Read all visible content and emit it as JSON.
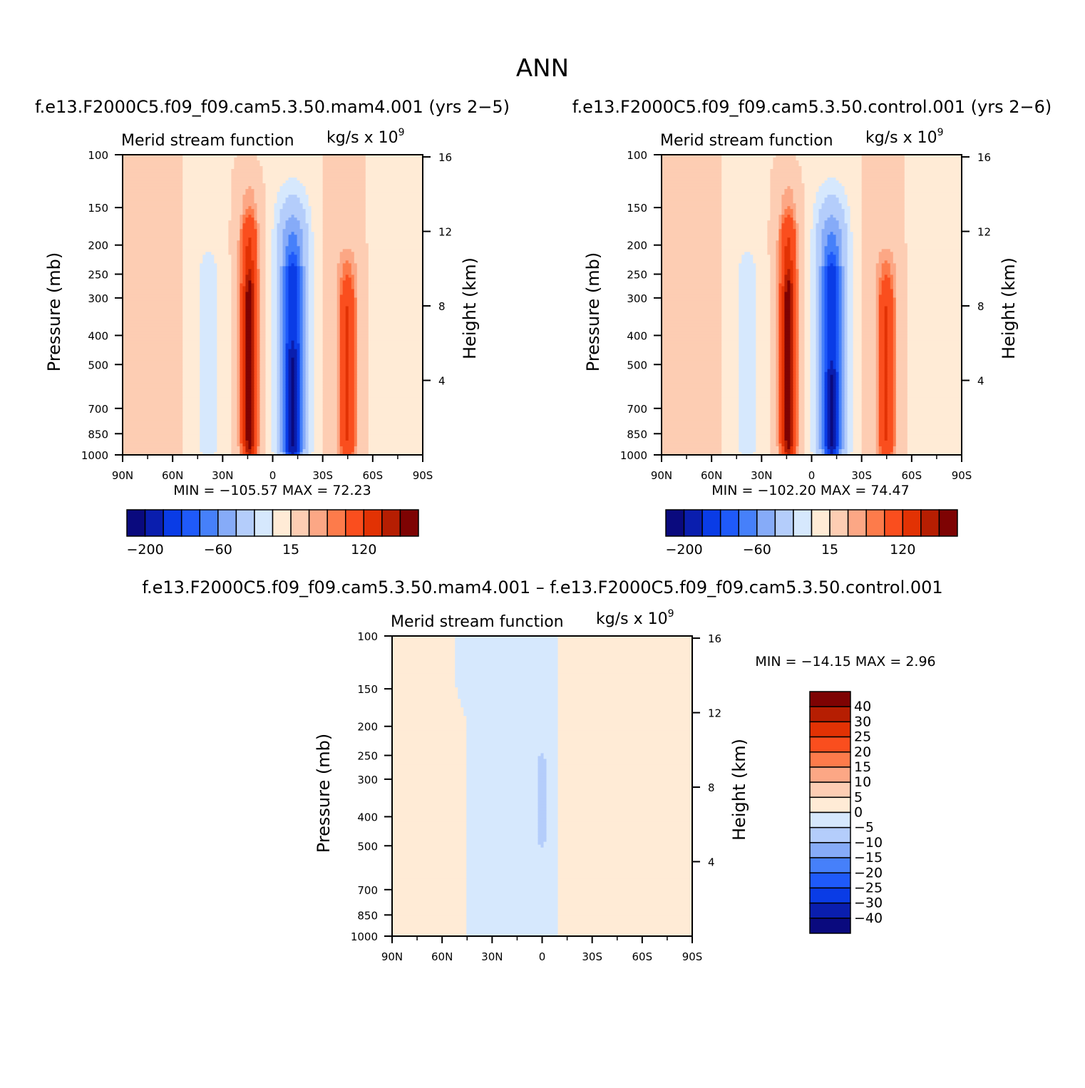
{
  "figure": {
    "title": "ANN",
    "bottom_title": "f.e13.F2000C5.f09_f09.cam5.3.50.mam4.001 – f.e13.F2000C5.f09_f09.cam5.3.50.control.001"
  },
  "chart_data": [
    {
      "type": "heatmap",
      "id": "p1",
      "title": "f.e13.F2000C5.f09_f09.cam5.3.50.mam4.001  (yrs 2−5)",
      "left_label": "Merid stream function",
      "units": "kg/s x 10",
      "units_exp": "9",
      "xlabel": "",
      "ylabel": "Pressure (mb)",
      "ylabel2": "Height (km)",
      "x_tick_labels": [
        "90N",
        "60N",
        "30N",
        "0",
        "30S",
        "60S",
        "90S"
      ],
      "x_tick_values": [
        90,
        60,
        30,
        0,
        -30,
        -60,
        -90
      ],
      "y_tick_labels": [
        "100",
        "150",
        "200",
        "250",
        "300",
        "400",
        "500",
        "700",
        "850",
        "1000"
      ],
      "y_tick_values": [
        100,
        150,
        200,
        250,
        300,
        400,
        500,
        700,
        850,
        1000
      ],
      "y2_tick_labels": [
        "16",
        "12",
        "8",
        "4"
      ],
      "y2_tick_values": [
        16,
        12,
        8,
        4
      ],
      "min": -105.57,
      "max": 72.23,
      "stats": "MIN = −105.57   MAX =   72.23",
      "features": [
        {
          "lat": 69,
          "p_top": 100,
          "p_bot": 1000,
          "value": 3,
          "width": 12
        },
        {
          "lat": 40,
          "p_top": 100,
          "p_bot": 1000,
          "value": -6,
          "width": 10
        },
        {
          "lat": 38,
          "p_top": 260,
          "p_bot": 880,
          "value": -12,
          "width": 6
        },
        {
          "lat": 14,
          "p_top": 140,
          "p_bot": 1000,
          "value": 12,
          "width": 7
        },
        {
          "lat": 14,
          "p_top": 200,
          "p_bot": 900,
          "value": 30,
          "width": 5
        },
        {
          "lat": 14,
          "p_top": 300,
          "p_bot": 870,
          "value": 60,
          "width": 2.5
        },
        {
          "lat": -12,
          "p_top": 100,
          "p_bot": 1000,
          "value": -6,
          "width": 14
        },
        {
          "lat": -12,
          "p_top": 150,
          "p_bot": 950,
          "value": -15,
          "width": 10
        },
        {
          "lat": -12,
          "p_top": 190,
          "p_bot": 930,
          "value": -40,
          "width": 8
        },
        {
          "lat": -12,
          "p_top": 260,
          "p_bot": 900,
          "value": -60,
          "width": 5
        },
        {
          "lat": -12,
          "p_top": 520,
          "p_bot": 880,
          "value": -100,
          "width": 3
        },
        {
          "lat": -42,
          "p_top": 100,
          "p_bot": 1000,
          "value": 4,
          "width": 12
        },
        {
          "lat": -45,
          "p_top": 240,
          "p_bot": 900,
          "value": 12,
          "width": 7
        },
        {
          "lat": -45,
          "p_top": 330,
          "p_bot": 870,
          "value": 25,
          "width": 4
        },
        {
          "lat": -72,
          "p_top": 100,
          "p_bot": 1000,
          "value": -4,
          "width": 14
        }
      ],
      "colorbar": {
        "labels": [
          "−200",
          "−60",
          "15",
          "120"
        ]
      }
    },
    {
      "type": "heatmap",
      "id": "p2",
      "title": "f.e13.F2000C5.f09_f09.cam5.3.50.control.001  (yrs 2−6)",
      "left_label": "Merid stream function",
      "units": "kg/s x 10",
      "units_exp": "9",
      "xlabel": "",
      "ylabel": "Pressure (mb)",
      "ylabel2": "Height (km)",
      "x_tick_labels": [
        "90N",
        "60N",
        "30N",
        "0",
        "30S",
        "60S",
        "90S"
      ],
      "x_tick_values": [
        90,
        60,
        30,
        0,
        -30,
        -60,
        -90
      ],
      "y_tick_labels": [
        "100",
        "150",
        "200",
        "250",
        "300",
        "400",
        "500",
        "700",
        "850",
        "1000"
      ],
      "y_tick_values": [
        100,
        150,
        200,
        250,
        300,
        400,
        500,
        700,
        850,
        1000
      ],
      "y2_tick_labels": [
        "16",
        "12",
        "8",
        "4"
      ],
      "y2_tick_values": [
        16,
        12,
        8,
        4
      ],
      "min": -102.2,
      "max": 74.47,
      "stats": "MIN = −102.20   MAX =   74.47",
      "features": [
        {
          "lat": 69,
          "p_top": 100,
          "p_bot": 1000,
          "value": 3,
          "width": 12
        },
        {
          "lat": 40,
          "p_top": 100,
          "p_bot": 1000,
          "value": -6,
          "width": 10
        },
        {
          "lat": 38,
          "p_top": 260,
          "p_bot": 880,
          "value": -12,
          "width": 6
        },
        {
          "lat": 14,
          "p_top": 140,
          "p_bot": 1000,
          "value": 12,
          "width": 7
        },
        {
          "lat": 14,
          "p_top": 200,
          "p_bot": 900,
          "value": 30,
          "width": 5
        },
        {
          "lat": 14,
          "p_top": 300,
          "p_bot": 870,
          "value": 60,
          "width": 2.5
        },
        {
          "lat": -12,
          "p_top": 100,
          "p_bot": 1000,
          "value": -6,
          "width": 14
        },
        {
          "lat": -12,
          "p_top": 150,
          "p_bot": 950,
          "value": -15,
          "width": 10
        },
        {
          "lat": -12,
          "p_top": 190,
          "p_bot": 930,
          "value": -40,
          "width": 8
        },
        {
          "lat": -12,
          "p_top": 260,
          "p_bot": 900,
          "value": -60,
          "width": 5
        },
        {
          "lat": -12,
          "p_top": 600,
          "p_bot": 880,
          "value": -100,
          "width": 2.5
        },
        {
          "lat": -42,
          "p_top": 100,
          "p_bot": 1000,
          "value": 4,
          "width": 12
        },
        {
          "lat": -45,
          "p_top": 240,
          "p_bot": 900,
          "value": 12,
          "width": 7
        },
        {
          "lat": -45,
          "p_top": 330,
          "p_bot": 870,
          "value": 25,
          "width": 4
        },
        {
          "lat": -72,
          "p_top": 100,
          "p_bot": 1000,
          "value": -4,
          "width": 14
        }
      ],
      "colorbar": {
        "labels": [
          "−200",
          "−60",
          "15",
          "120"
        ]
      }
    },
    {
      "type": "heatmap",
      "id": "p3",
      "title": "",
      "left_label": "Merid stream function",
      "units": "kg/s x 10",
      "units_exp": "9",
      "xlabel": "",
      "ylabel": "Pressure (mb)",
      "ylabel2": "Height (km)",
      "x_tick_labels": [
        "90N",
        "60N",
        "30N",
        "0",
        "30S",
        "60S",
        "90S"
      ],
      "x_tick_values": [
        90,
        60,
        30,
        0,
        -30,
        -60,
        -90
      ],
      "y_tick_labels": [
        "100",
        "150",
        "200",
        "250",
        "300",
        "400",
        "500",
        "700",
        "850",
        "1000"
      ],
      "y_tick_values": [
        100,
        150,
        200,
        250,
        300,
        400,
        500,
        700,
        850,
        1000
      ],
      "y2_tick_labels": [
        "16",
        "12",
        "8",
        "4"
      ],
      "y2_tick_values": [
        16,
        12,
        8,
        4
      ],
      "min": -14.15,
      "max": 2.96,
      "stats": "MIN = −14.15   MAX =    2.96",
      "features": [
        {
          "lat": 67,
          "p_top": 210,
          "p_bot": 1000,
          "value": 2,
          "width": 18
        },
        {
          "lat": 22,
          "p_top": 100,
          "p_bot": 1000,
          "value": -2,
          "width": 26
        },
        {
          "lat": 0,
          "p_top": 280,
          "p_bot": 450,
          "value": -7,
          "width": 4
        },
        {
          "lat": -40,
          "p_top": 210,
          "p_bot": 1000,
          "value": 2,
          "width": 9
        },
        {
          "lat": -50,
          "p_top": 100,
          "p_bot": 170,
          "value": 2,
          "width": 3
        }
      ],
      "colorbar": {
        "labels": [
          "40",
          "30",
          "25",
          "20",
          "15",
          "10",
          "5",
          "0",
          "−5",
          "−10",
          "−15",
          "−20",
          "−25",
          "−30",
          "−40"
        ]
      }
    }
  ],
  "color_levels": [
    -200,
    -150,
    -100,
    -80,
    -60,
    -40,
    -20,
    -10,
    0,
    10,
    15,
    20,
    40,
    60,
    80,
    100,
    120,
    150,
    200
  ],
  "diff_levels": [
    -40,
    -30,
    -25,
    -20,
    -15,
    -10,
    -5,
    0,
    5,
    10,
    15,
    20,
    25,
    30,
    40
  ],
  "palette": [
    "#0a0a7e",
    "#0a1eae",
    "#0a3ce6",
    "#1f5afa",
    "#4680fa",
    "#86abf8",
    "#b4cdfb",
    "#d6e8fd",
    "#ffebd6",
    "#fdcdb3",
    "#fca785",
    "#fd7b4b",
    "#fa4e1e",
    "#e23204",
    "#b61e02",
    "#7e0303"
  ],
  "diff_palette": [
    "#0a0a7e",
    "#0a1eae",
    "#0a3ce6",
    "#1f5afa",
    "#4680fa",
    "#86abf8",
    "#b4cdfb",
    "#d6e8fd",
    "#ffebd6",
    "#fdcdb3",
    "#fca785",
    "#fd7b4b",
    "#fa4e1e",
    "#e23204",
    "#b61e02",
    "#7e0303"
  ]
}
